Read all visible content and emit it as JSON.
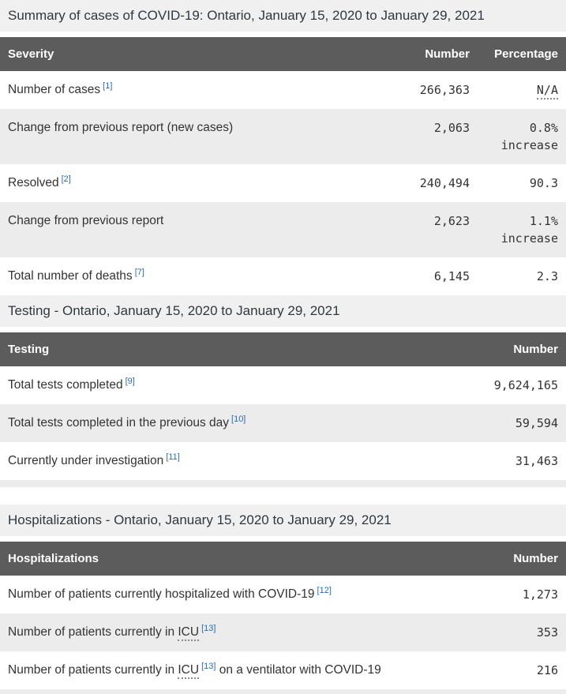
{
  "colors": {
    "header_bg": "#5c5c5c",
    "header_text": "#ffffff",
    "shaded_row_bg": "#ececec",
    "caption_bg": "#f0f0f0",
    "footnote_link_blue": "#2b6cb0",
    "body_text": "#333333"
  },
  "summary": {
    "caption": "Summary of cases of COVID-19: Ontario, January 15, 2020 to January 29, 2021",
    "columns": {
      "severity": "Severity",
      "number": "Number",
      "percentage": "Percentage"
    },
    "rows": [
      {
        "label": "Number of cases",
        "footnote": "[1]",
        "number": "266,363",
        "percentage": "N/A"
      },
      {
        "label": "Change from previous report (new cases)",
        "number": "2,063",
        "percentage": "0.8% increase"
      },
      {
        "label": "Resolved",
        "footnote": "[2]",
        "number": "240,494",
        "percentage": "90.3"
      },
      {
        "label": "Change from previous report",
        "number": "2,623",
        "percentage": "1.1% increase"
      },
      {
        "label": "Total number of deaths",
        "footnote": "[7]",
        "number": "6,145",
        "percentage": "2.3"
      }
    ]
  },
  "testing": {
    "caption": "Testing - Ontario, January 15, 2020 to January 29, 2021",
    "columns": {
      "label": "Testing",
      "number": "Number"
    },
    "rows": [
      {
        "label": "Total tests completed",
        "footnote": "[9]",
        "number": "9,624,165"
      },
      {
        "label": "Total tests completed in the previous day",
        "footnote": "[10]",
        "number": "59,594"
      },
      {
        "label": "Currently under investigation",
        "footnote": "[11]",
        "number": "31,463"
      }
    ]
  },
  "hospitalizations": {
    "caption": "Hospitalizations - Ontario, January 15, 2020 to January 29, 2021",
    "columns": {
      "label": "Hospitalizations",
      "number": "Number"
    },
    "rows": [
      {
        "label": "Number of patients currently hospitalized with COVID-19",
        "footnote": "[12]",
        "number": "1,273"
      },
      {
        "label_prefix": "Number of patients currently in ",
        "abbr": "ICU",
        "footnote": "[13]",
        "number": "353"
      },
      {
        "label_prefix": "Number of patients currently in ",
        "abbr": "ICU",
        "footnote": "[13]",
        "label_suffix": " on a ventilator with COVID-19",
        "number": "216"
      }
    ]
  }
}
